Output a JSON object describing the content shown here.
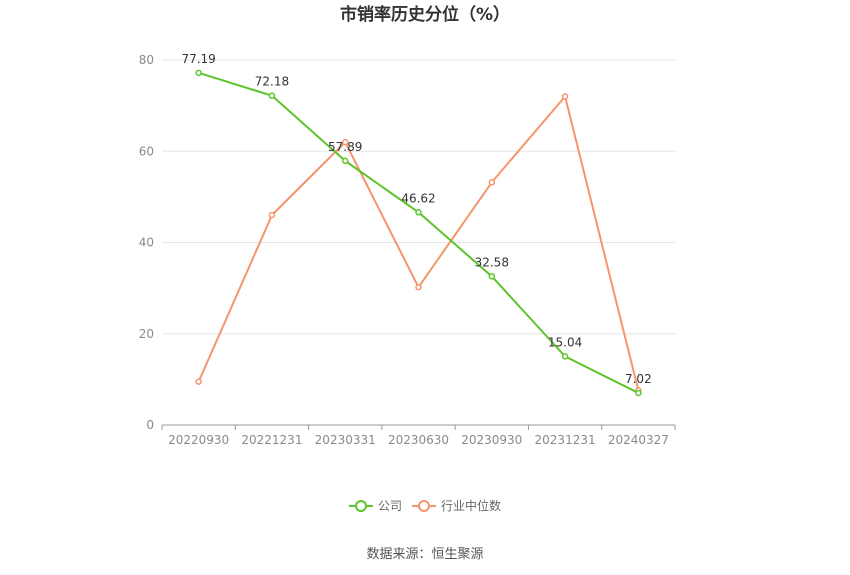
{
  "chart_data": {
    "type": "line",
    "title": "市销率历史分位（%）",
    "categories": [
      "20220930",
      "20221231",
      "20230331",
      "20230630",
      "20230930",
      "20231231",
      "20240327"
    ],
    "ylim": [
      0,
      80
    ],
    "yticks": [
      0,
      20,
      40,
      60,
      80
    ],
    "grid": true,
    "legend_position": "bottom-center",
    "series": [
      {
        "name": "公司",
        "color": "#5cc42b",
        "values": [
          77.19,
          72.18,
          57.89,
          46.62,
          32.58,
          15.04,
          7.02
        ],
        "labels": [
          "77.19",
          "72.18",
          "57.89",
          "46.62",
          "32.58",
          "15.04",
          "7.02"
        ]
      },
      {
        "name": "行业中位数",
        "color": "#f5956b",
        "values": [
          9.5,
          46,
          62,
          30.2,
          53.2,
          72,
          7.6
        ]
      }
    ],
    "source": "数据来源：恒生聚源"
  }
}
